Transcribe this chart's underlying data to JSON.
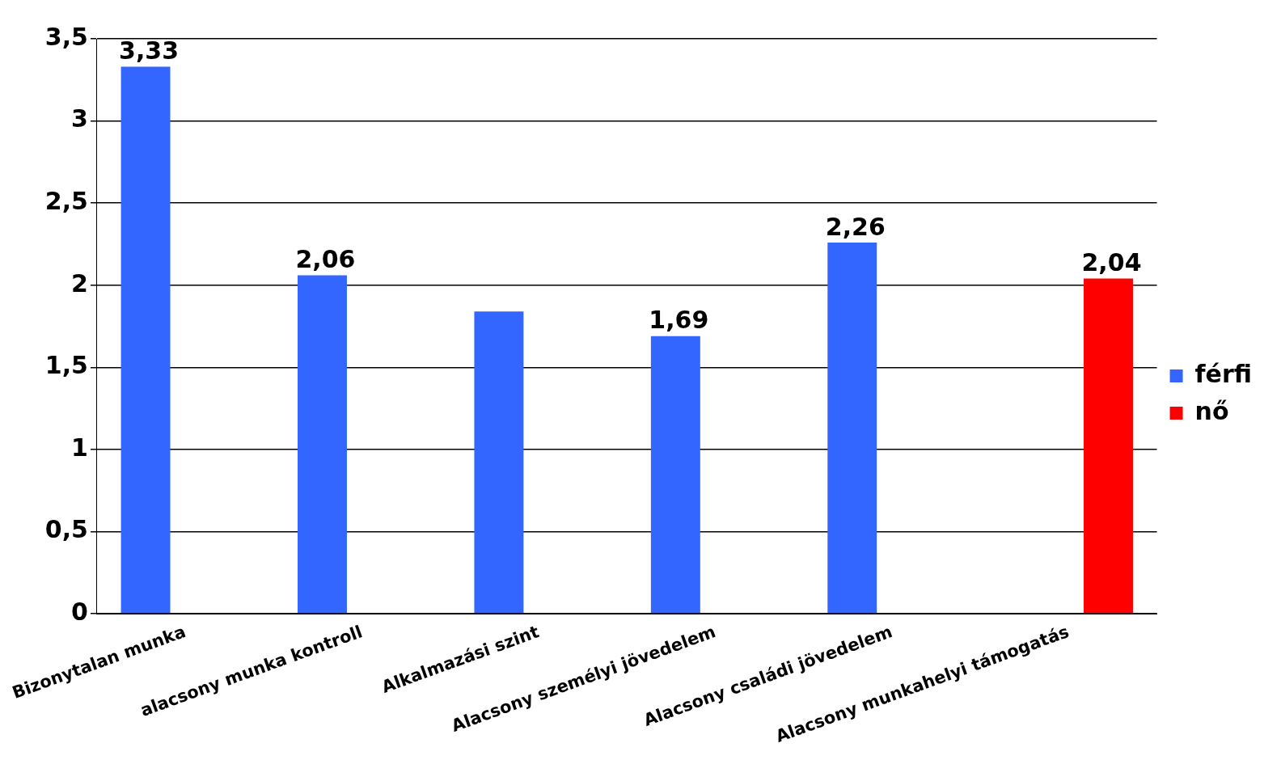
{
  "chart_data": {
    "type": "bar",
    "categories": [
      "Bizonytalan munka",
      "alacsony munka kontroll",
      "Alkalmazási szint",
      "Alacsony személyi jövedelem",
      "Alacsony családi jövedelem",
      "Alacsony munkahelyi támogatás"
    ],
    "series": [
      {
        "name": "férfi",
        "color": "#3366ff",
        "values": [
          3.33,
          2.06,
          1.84,
          1.69,
          2.26,
          null
        ],
        "value_labels": [
          "3,33",
          "2,06",
          null,
          "1,69",
          "2,26",
          null
        ]
      },
      {
        "name": "nő",
        "color": "#ff0000",
        "values": [
          null,
          null,
          null,
          null,
          null,
          2.04
        ],
        "value_labels": [
          null,
          null,
          null,
          null,
          null,
          "2,04"
        ]
      }
    ],
    "ylim": [
      0,
      3.5
    ],
    "yticks": [
      {
        "value": 0,
        "label": "0"
      },
      {
        "value": 0.5,
        "label": "0,5"
      },
      {
        "value": 1,
        "label": "1"
      },
      {
        "value": 1.5,
        "label": "1,5"
      },
      {
        "value": 2,
        "label": "2"
      },
      {
        "value": 2.5,
        "label": "2,5"
      },
      {
        "value": 3,
        "label": "3"
      },
      {
        "value": 3.5,
        "label": "3,5"
      }
    ],
    "grid": "y",
    "legend": "right"
  }
}
